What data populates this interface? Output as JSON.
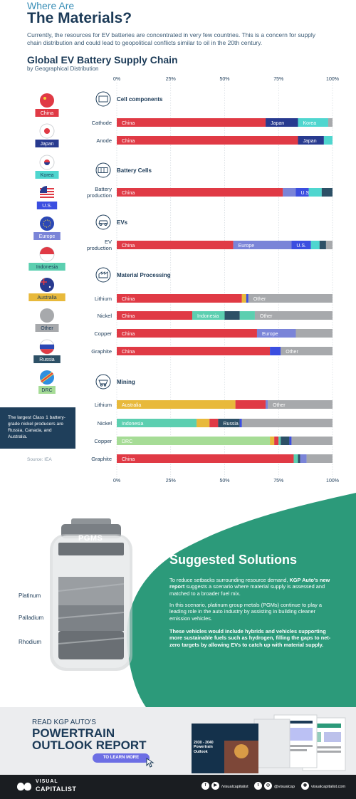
{
  "header": {
    "pretitle": "Where Are",
    "title": "The Materials?",
    "intro": "Currently, the resources for EV batteries are concentrated in very few countries. This is a concern for supply chain distribution and could lead to geopolitical conflicts similar to oil in the 20th century."
  },
  "colors": {
    "China": "#e03a45",
    "Japan": "#283a8f",
    "Korea": "#4fd6cf",
    "U.S.": "#3b4ee0",
    "Europe": "#7a84d8",
    "Indonesia": "#5ccfb0",
    "Australia": "#e8b93b",
    "Other": "#a7a9ac",
    "Russia": "#2d5066",
    "DRC": "#a6dc96"
  },
  "legend": [
    {
      "name": "China",
      "icon": "china-flag-icon"
    },
    {
      "name": "Japan",
      "icon": "japan-flag-icon"
    },
    {
      "name": "Korea",
      "icon": "korea-flag-icon"
    },
    {
      "name": "U.S.",
      "icon": "us-flag-icon"
    },
    {
      "name": "Europe",
      "icon": "eu-flag-icon"
    },
    {
      "name": "Indonesia",
      "icon": "indonesia-flag-icon"
    },
    {
      "name": "Australia",
      "icon": "australia-flag-icon"
    },
    {
      "name": "Other",
      "icon": "other-circle-icon"
    },
    {
      "name": "Russia",
      "icon": "russia-flag-icon"
    },
    {
      "name": "DRC",
      "icon": "drc-flag-icon"
    }
  ],
  "chart_data": {
    "type": "bar",
    "stacked": true,
    "orientation": "horizontal",
    "title": "Global EV Battery Supply Chain",
    "subtitle": "by Geographical Distribution",
    "xlim": [
      0,
      100
    ],
    "ticks": [
      "0%",
      "25%",
      "50%",
      "75%",
      "100%"
    ],
    "groups": [
      {
        "name": "Cell components",
        "icon": "battery-cell-icon",
        "rows": [
          {
            "label": "Cathode",
            "segments": [
              {
                "name": "China",
                "value": 69,
                "label": "China"
              },
              {
                "name": "Japan",
                "value": 15,
                "label": "Japan"
              },
              {
                "name": "Korea",
                "value": 14,
                "label": "Korea"
              },
              {
                "name": "Other",
                "value": 2,
                "label": ""
              }
            ]
          },
          {
            "label": "Anode",
            "segments": [
              {
                "name": "China",
                "value": 84,
                "label": "China"
              },
              {
                "name": "Japan",
                "value": 12,
                "label": "Japan"
              },
              {
                "name": "Korea",
                "value": 4,
                "label": ""
              }
            ]
          }
        ]
      },
      {
        "name": "Battery  Cells",
        "icon": "battery-pack-icon",
        "rows": [
          {
            "label": "Battery production",
            "segments": [
              {
                "name": "China",
                "value": 77,
                "label": "China"
              },
              {
                "name": "Europe",
                "value": 6,
                "label": ""
              },
              {
                "name": "U.S.",
                "value": 6,
                "label": "U.S."
              },
              {
                "name": "Korea",
                "value": 6,
                "label": ""
              },
              {
                "name": "Russia",
                "value": 5,
                "label": ""
              }
            ]
          }
        ]
      },
      {
        "name": "EVs",
        "icon": "car-icon",
        "rows": [
          {
            "label": "EV production",
            "segments": [
              {
                "name": "China",
                "value": 54,
                "label": "China"
              },
              {
                "name": "Europe",
                "value": 27,
                "label": "Europe"
              },
              {
                "name": "U.S.",
                "value": 9,
                "label": "U.S."
              },
              {
                "name": "Korea",
                "value": 4,
                "label": ""
              },
              {
                "name": "Russia",
                "value": 3,
                "label": ""
              },
              {
                "name": "Other",
                "value": 3,
                "label": ""
              }
            ]
          }
        ]
      },
      {
        "name": "Material Processing",
        "icon": "factory-icon",
        "rows": [
          {
            "label": "Lithium",
            "segments": [
              {
                "name": "China",
                "value": 58,
                "label": "China"
              },
              {
                "name": "Australia",
                "value": 2,
                "label": ""
              },
              {
                "name": "U.S.",
                "value": 1,
                "label": ""
              },
              {
                "name": "Other",
                "value": 39,
                "label": "Other"
              }
            ]
          },
          {
            "label": "Nickel",
            "segments": [
              {
                "name": "China",
                "value": 35,
                "label": "China"
              },
              {
                "name": "Indonesia",
                "value": 15,
                "label": "Indonesia"
              },
              {
                "name": "Russia",
                "value": 7,
                "label": ""
              },
              {
                "name": "Indonesia",
                "value": 7,
                "label": ""
              },
              {
                "name": "Other",
                "value": 36,
                "label": "Other"
              }
            ]
          },
          {
            "label": "Copper",
            "segments": [
              {
                "name": "China",
                "value": 65,
                "label": "China"
              },
              {
                "name": "Europe",
                "value": 18,
                "label": "Europe"
              },
              {
                "name": "Other",
                "value": 17,
                "label": ""
              }
            ]
          },
          {
            "label": "Graphite",
            "segments": [
              {
                "name": "China",
                "value": 71,
                "label": "China"
              },
              {
                "name": "U.S.",
                "value": 5,
                "label": ""
              },
              {
                "name": "Other",
                "value": 24,
                "label": "Other"
              }
            ]
          }
        ]
      },
      {
        "name": "Mining",
        "icon": "mine-cart-icon",
        "rows": [
          {
            "label": "Lithium",
            "segments": [
              {
                "name": "Australia",
                "value": 55,
                "label": "Australia"
              },
              {
                "name": "China",
                "value": 14,
                "label": ""
              },
              {
                "name": "Europe",
                "value": 1,
                "label": ""
              },
              {
                "name": "Other",
                "value": 30,
                "label": "Other"
              }
            ]
          },
          {
            "label": "Nickel",
            "segments": [
              {
                "name": "Indonesia",
                "value": 37,
                "label": "Indonesia"
              },
              {
                "name": "Australia",
                "value": 6,
                "label": ""
              },
              {
                "name": "China",
                "value": 4,
                "label": ""
              },
              {
                "name": "Russia",
                "value": 10,
                "label": "Russia"
              },
              {
                "name": "U.S.",
                "value": 1,
                "label": ""
              },
              {
                "name": "Other",
                "value": 42,
                "label": ""
              }
            ]
          },
          {
            "label": "Copper",
            "segments": [
              {
                "name": "DRC",
                "value": 71,
                "label": "DRC"
              },
              {
                "name": "Australia",
                "value": 2,
                "label": ""
              },
              {
                "name": "China",
                "value": 2,
                "label": ""
              },
              {
                "name": "Indonesia",
                "value": 1,
                "label": ""
              },
              {
                "name": "Russia",
                "value": 4,
                "label": ""
              },
              {
                "name": "U.S.",
                "value": 1,
                "label": ""
              },
              {
                "name": "Other",
                "value": 19,
                "label": ""
              }
            ]
          },
          {
            "label": "Graphite",
            "segments": [
              {
                "name": "China",
                "value": 82,
                "label": "China"
              },
              {
                "name": "Indonesia",
                "value": 2,
                "label": ""
              },
              {
                "name": "Russia",
                "value": 1,
                "label": ""
              },
              {
                "name": "Europe",
                "value": 3,
                "label": ""
              },
              {
                "name": "Other",
                "value": 12,
                "label": ""
              }
            ]
          }
        ]
      }
    ]
  },
  "note": "The largest Class 1 battery-grade nickel producers are Russia, Canada, and Australia.",
  "source": "Source: IEA",
  "solutions": {
    "battery_label": "PGMS",
    "layers": [
      "Platinum",
      "Palladium",
      "Rhodium"
    ],
    "title": "Suggested Solutions",
    "p1_lead": "To reduce setbacks surrounding resource demand, ",
    "p1_bold": "KGP Auto's new report",
    "p1_tail": " suggests a scenario where material supply is assessed and matched to a broader fuel mix.",
    "p2": "In this scenario, platinum group metals (PGMs) continue to play a leading role in the auto industry by assisting in building cleaner emission vehicles.",
    "p3": "These vehicles would include hybrids and vehicles supporting more sustainable fuels such as hydrogen, filling the gaps to net-zero targets by allowing EVs to catch up with material supply."
  },
  "cta": {
    "line1": "READ KGP AUTO'S",
    "line2": "POWERTRAIN",
    "line3": "OUTLOOK REPORT",
    "button": "TO LEARN MORE",
    "report_cover_title": "2030 - 2040 Powertrain Outlook"
  },
  "footer": {
    "logo_top": "VISUAL",
    "logo_bottom": "CAPITALIST",
    "handle1": "/visualcapitalist",
    "handle2": "@visualcap",
    "site": "visualcapitalist.com"
  }
}
